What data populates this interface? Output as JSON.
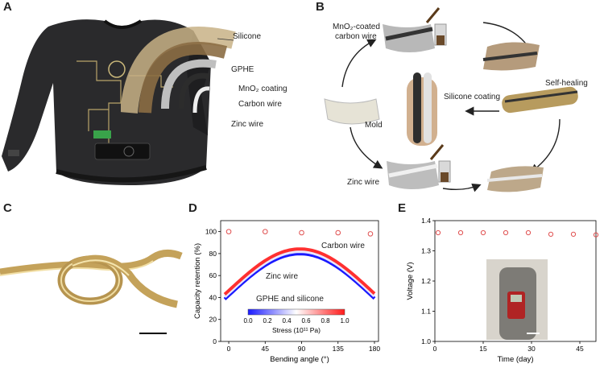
{
  "panels": {
    "A": {
      "letter": "A",
      "labels": {
        "silicone": "Silicone",
        "gphe": "GPHE",
        "mno2_coating": "MnO₂ coating",
        "carbon_wire": "Carbon wire",
        "zinc_wire": "Zinc wire"
      }
    },
    "B": {
      "letter": "B",
      "labels": {
        "mno2_coated_line1": "MnO₂-coated",
        "mno2_coated_line2": "carbon wire",
        "self_healing": "Self-healing",
        "silicone_coating": "Silicone coating",
        "mold": "Mold",
        "zinc_wire": "Zinc wire"
      }
    },
    "C": {
      "letter": "C"
    },
    "D": {
      "letter": "D"
    },
    "E": {
      "letter": "E"
    }
  },
  "chart_data": [
    {
      "panel": "D",
      "type": "scatter",
      "xlabel": "Bending angle (°)",
      "ylabel": "Capacity retention (%)",
      "xlim": [
        -10,
        185
      ],
      "ylim": [
        0,
        110
      ],
      "xticks": [
        0,
        45,
        90,
        135,
        180
      ],
      "yticks": [
        0,
        20,
        40,
        60,
        80,
        100
      ],
      "series": [
        {
          "values": [
            {
              "x": 0,
              "y": 100
            },
            {
              "x": 45,
              "y": 100
            },
            {
              "x": 90,
              "y": 99
            },
            {
              "x": 135,
              "y": 99
            },
            {
              "x": 175,
              "y": 98
            }
          ]
        }
      ],
      "annotations": [
        "Carbon wire",
        "Zinc wire",
        "GPHE and silicone"
      ],
      "stress_arch": {
        "x": [
          -5,
          180
        ],
        "y_base": 44,
        "y_peak": 82,
        "peak_x": 88
      },
      "colorbar": {
        "label": "Stress (10¹¹ Pa)",
        "ticks": [
          "0.0",
          "0.2",
          "0.4",
          "0.6",
          "0.8",
          "1.0"
        ],
        "colors": [
          "#1a1aff",
          "#ffffff",
          "#ff1a1a"
        ]
      },
      "marker_color": "#e05050"
    },
    {
      "panel": "E",
      "type": "scatter",
      "xlabel": "Time (day)",
      "ylabel": "Voltage (V)",
      "xlim": [
        0,
        50
      ],
      "ylim": [
        1.0,
        1.4
      ],
      "xticks": [
        0,
        15,
        30,
        45
      ],
      "yticks": [
        1.0,
        1.1,
        1.2,
        1.3,
        1.4
      ],
      "series": [
        {
          "values": [
            {
              "x": 1,
              "y": 1.36
            },
            {
              "x": 8,
              "y": 1.36
            },
            {
              "x": 15,
              "y": 1.36
            },
            {
              "x": 22,
              "y": 1.36
            },
            {
              "x": 29,
              "y": 1.36
            },
            {
              "x": 36,
              "y": 1.355
            },
            {
              "x": 43,
              "y": 1.355
            },
            {
              "x": 50,
              "y": 1.353
            }
          ]
        }
      ],
      "marker_color": "#e05050"
    }
  ]
}
